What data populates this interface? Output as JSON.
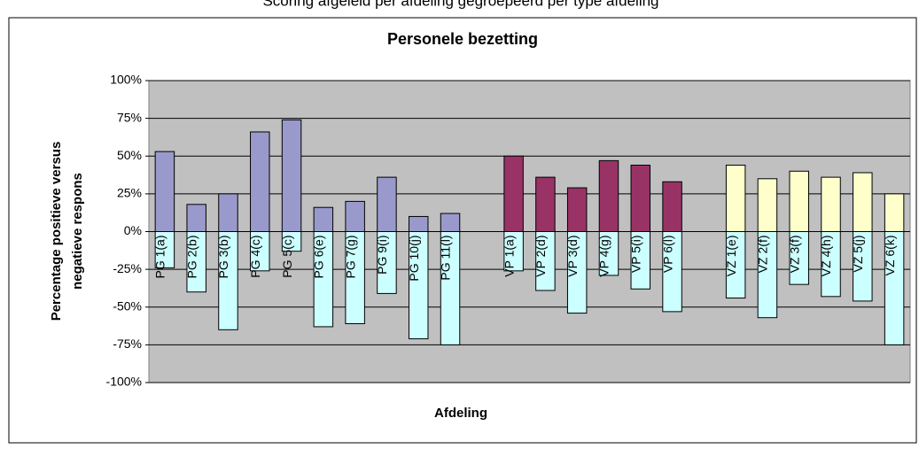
{
  "chart_data": {
    "type": "bar",
    "caption": "Scoring afgeleid per afdeling gegroepeerd per type afdeling",
    "title": "Personele bezetting",
    "x_label": "Afdeling",
    "y_label": [
      "Percentage positieve versus",
      "negatieve respons"
    ],
    "categories": [
      "PG 1(a)",
      "PG 2(b)",
      "PG 3(b)",
      "PG 4(c)",
      "PG 5(c)",
      "PG 6(e)",
      "PG 7(g)",
      "PG 9(i)",
      "PG 10(j)",
      "PG 11(l)",
      null,
      "VP 1(a)",
      "VP 2(d)",
      "VP 3(d)",
      "VP 4(g)",
      "VP 5(i)",
      "VP 6(l)",
      null,
      "VZ 1(e)",
      "VZ 2(f)",
      "VZ 3(f)",
      "VZ 4(h)",
      "VZ 5(j)",
      "VZ 6(k)"
    ],
    "series": [
      {
        "colors": [
          "#9999cc",
          "#9999cc",
          "#9999cc",
          "#9999cc",
          "#9999cc",
          "#9999cc",
          "#9999cc",
          "#9999cc",
          "#9999cc",
          "#9999cc",
          null,
          "#993366",
          "#993366",
          "#993366",
          "#993366",
          "#993366",
          "#993366",
          null,
          "#ffffcc",
          "#ffffcc",
          "#ffffcc",
          "#ffffcc",
          "#ffffcc",
          "#ffffcc"
        ],
        "values": [
          53,
          18,
          25,
          66,
          74,
          16,
          20,
          36,
          10,
          12,
          null,
          50,
          36,
          29,
          47,
          44,
          33,
          null,
          44,
          35,
          40,
          36,
          39,
          25
        ]
      },
      {
        "color": "#ccffff",
        "values": [
          -24,
          -40,
          -65,
          -26,
          -13,
          -63,
          -61,
          -41,
          -71,
          -75,
          null,
          -26,
          -39,
          -54,
          -29,
          -38,
          -53,
          null,
          -44,
          -57,
          -35,
          -43,
          -46,
          -75
        ]
      }
    ],
    "ylim": [
      -100,
      100
    ],
    "yticks": [
      {
        "value": -100,
        "label": "-100%"
      },
      {
        "value": -75,
        "label": "-75%"
      },
      {
        "value": -50,
        "label": "-50%"
      },
      {
        "value": -25,
        "label": "-25%"
      },
      {
        "value": 0,
        "label": "0%"
      },
      {
        "value": 25,
        "label": "25%"
      },
      {
        "value": 50,
        "label": "50%"
      },
      {
        "value": 75,
        "label": "75%"
      },
      {
        "value": 100,
        "label": "100%"
      }
    ],
    "grid": true
  }
}
